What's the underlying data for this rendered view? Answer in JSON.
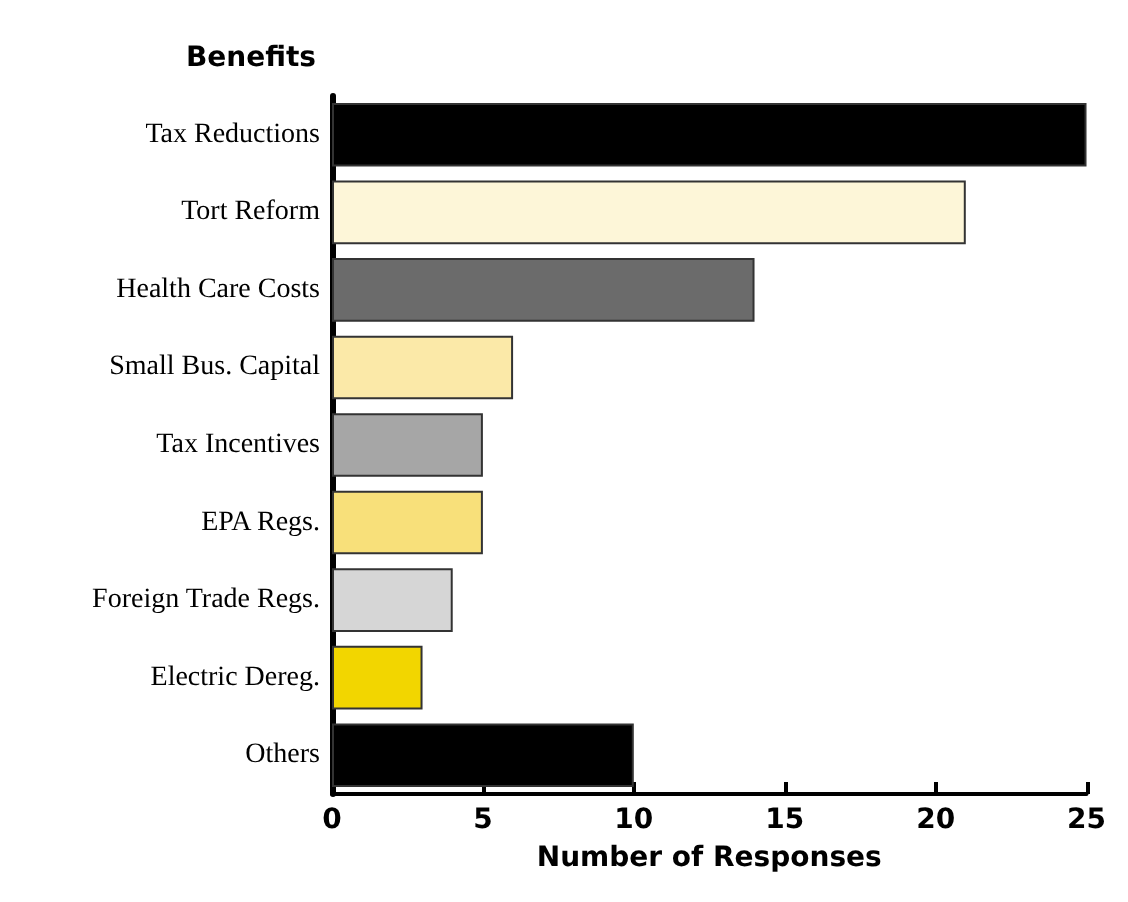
{
  "chart_data": {
    "type": "bar",
    "orientation": "horizontal",
    "ylabel": "Benefits",
    "xlabel": "Number of Responses",
    "categories": [
      "Tax Reductions",
      "Tort Reform",
      "Health Care Costs",
      "Small Bus. Capital",
      "Tax Incentives",
      "EPA Regs.",
      "Foreign Trade Regs.",
      "Electric Dereg.",
      "Others"
    ],
    "values": [
      25,
      21,
      14,
      6,
      5,
      5,
      4,
      3,
      10
    ],
    "colors": [
      "#000000",
      "#fdf6d8",
      "#6b6b6b",
      "#fbe9a8",
      "#a6a6a6",
      "#f8e07a",
      "#d6d6d6",
      "#f2d600",
      "#000000"
    ],
    "xlim": [
      0,
      25
    ],
    "xticks": [
      0,
      5,
      10,
      15,
      20,
      25
    ],
    "grid": false
  }
}
